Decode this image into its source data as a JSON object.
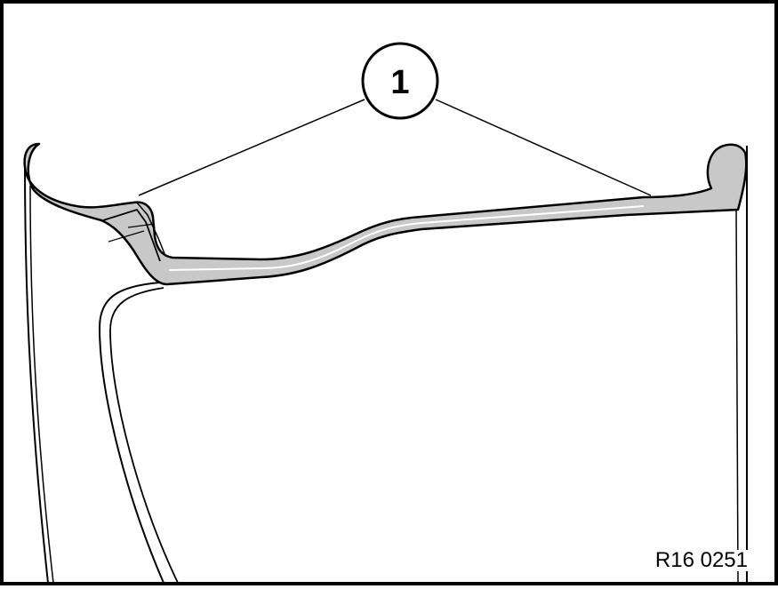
{
  "figure": {
    "callout": {
      "label": "1"
    },
    "reference_code": "R16 0251",
    "colors": {
      "line": "#000000",
      "rim_fill": "#c8c8c8",
      "background": "#ffffff"
    }
  }
}
